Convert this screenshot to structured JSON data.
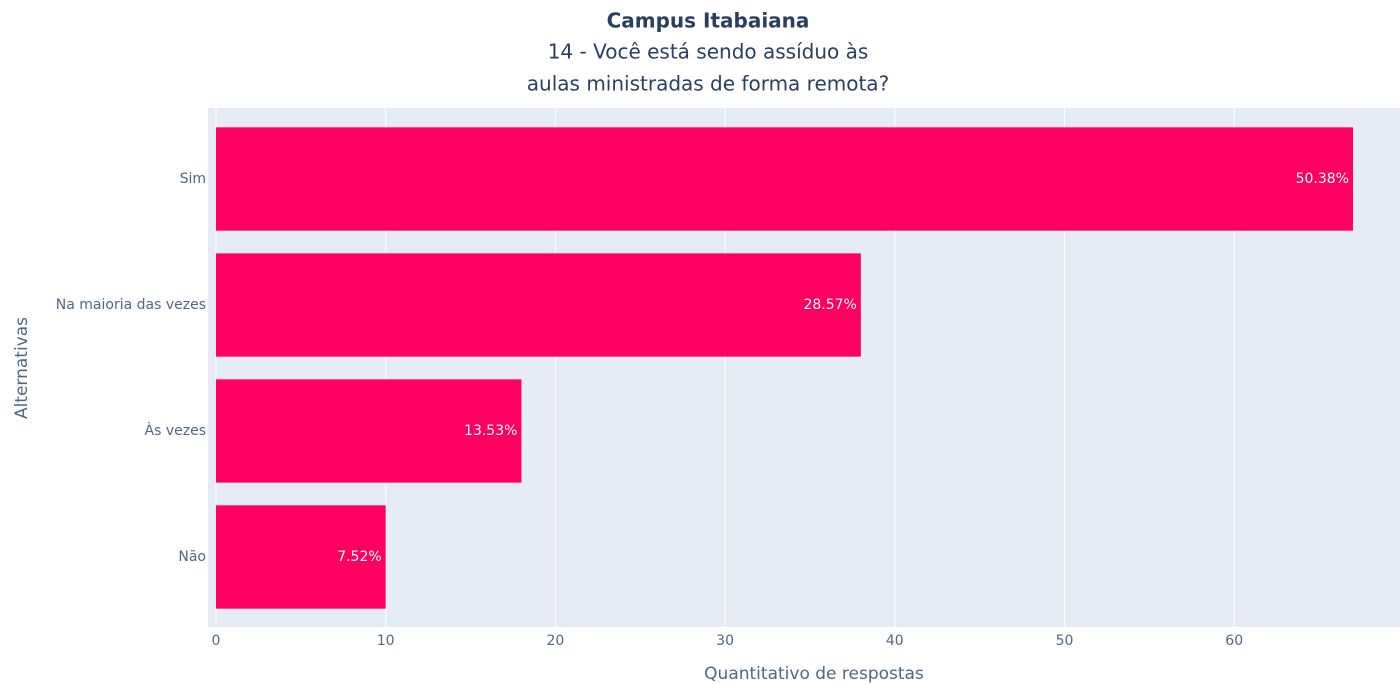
{
  "chart_data": {
    "type": "bar",
    "orientation": "horizontal",
    "title": "Campus Itabaiana",
    "subtitle": [
      "14 - Você está sendo assíduo às",
      "aulas ministradas de forma remota?"
    ],
    "xlabel": "Quantitativo de respostas",
    "ylabel": "Alternativas",
    "categories": [
      "Sim",
      "Na maioria das vezes",
      "Às vezes",
      "Não"
    ],
    "values": [
      67,
      38,
      18,
      10
    ],
    "value_labels": [
      "50.38%",
      "28.57%",
      "13.53%",
      "7.52%"
    ],
    "color": "#ff0060",
    "xlim": [
      -0.47,
      69.77
    ],
    "xticks": [
      0,
      10,
      20,
      30,
      40,
      50,
      60
    ],
    "grid": true
  }
}
